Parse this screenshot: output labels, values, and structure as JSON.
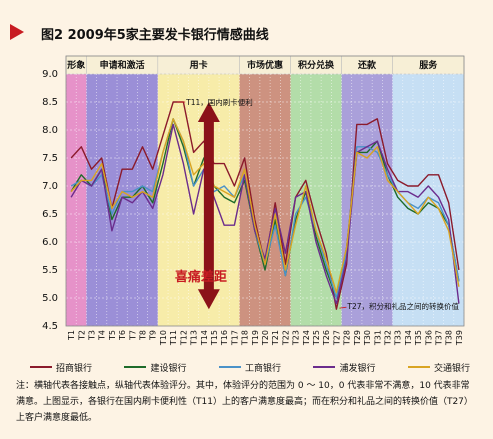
{
  "title": "图2  2009年5家主要发卡银行情感曲线",
  "note": "注：横轴代表各接触点，纵轴代表体验评分。其中，体验评分的范围为 0 ～ 10，0 代表非常不满意，10 代表非常满意。上图显示，各银行在国内刷卡便利性（T11）上的客户满意度最高；而在积分和礼品之间的转换价值（T27）上客户满意度最低。",
  "colors": {
    "accent": "#c81c22",
    "bands": [
      "#e27fc0",
      "#8a7bd0",
      "#f6e99a",
      "#c47f6a",
      "#a6d79a",
      "#9b8fd3",
      "#bcd9f2"
    ]
  },
  "chart_data": {
    "type": "line",
    "ylim": [
      4.5,
      9.0
    ],
    "yticks": [
      4.5,
      5.0,
      5.5,
      6.0,
      6.5,
      7.0,
      7.5,
      8.0,
      8.5,
      9.0
    ],
    "ytick_labels": [
      "4.5",
      "5.0",
      "5.5",
      "6.0",
      "6.5",
      "7.0",
      "7.5",
      "8.0",
      "8.5",
      "9.0"
    ],
    "x": [
      "T1",
      "T2",
      "T3",
      "T4",
      "T5",
      "T6",
      "T7",
      "T8",
      "T9",
      "T10",
      "T11",
      "T12",
      "T13",
      "T14",
      "T15",
      "T16",
      "T17",
      "T18",
      "T19",
      "T20",
      "T21",
      "T22",
      "T23",
      "T24",
      "T25",
      "T26",
      "T27",
      "T28",
      "T29",
      "T30",
      "T31",
      "T32",
      "T33",
      "T34",
      "T35",
      "T36",
      "T37",
      "T38",
      "T39"
    ],
    "categories": [
      {
        "label": "形象",
        "start": 0,
        "end": 2
      },
      {
        "label": "申请和激活",
        "start": 2,
        "end": 9
      },
      {
        "label": "用卡",
        "start": 9,
        "end": 17
      },
      {
        "label": "市场优惠",
        "start": 17,
        "end": 22
      },
      {
        "label": "积分兑换",
        "start": 22,
        "end": 27
      },
      {
        "label": "还款",
        "start": 27,
        "end": 32
      },
      {
        "label": "服务",
        "start": 32,
        "end": 39
      }
    ],
    "series": [
      {
        "name": "招商银行",
        "color": "#8b1a2b",
        "values": [
          7.5,
          7.7,
          7.3,
          7.5,
          6.6,
          7.3,
          7.3,
          7.7,
          7.3,
          7.9,
          8.5,
          8.5,
          7.6,
          7.8,
          7.4,
          7.4,
          7.0,
          7.5,
          6.4,
          5.6,
          6.7,
          5.6,
          6.8,
          7.1,
          6.4,
          5.8,
          4.8,
          5.6,
          8.1,
          8.1,
          8.2,
          7.4,
          7.1,
          7.0,
          7.0,
          7.2,
          7.2,
          6.7,
          5.5
        ]
      },
      {
        "name": "建设银行",
        "color": "#1e6b2a",
        "values": [
          6.9,
          7.2,
          7.0,
          7.3,
          6.4,
          6.8,
          6.8,
          7.0,
          6.7,
          7.4,
          8.2,
          7.7,
          7.0,
          7.5,
          7.0,
          6.8,
          6.7,
          7.1,
          6.2,
          5.5,
          6.4,
          5.4,
          6.4,
          6.9,
          6.1,
          5.5,
          5.0,
          5.9,
          7.6,
          7.6,
          7.8,
          7.2,
          6.8,
          6.6,
          6.5,
          6.7,
          6.6,
          6.3,
          5.3
        ]
      },
      {
        "name": "工商银行",
        "color": "#4a92c8",
        "values": [
          7.0,
          7.1,
          7.0,
          7.2,
          6.5,
          6.9,
          6.9,
          7.0,
          6.9,
          7.6,
          8.2,
          7.8,
          7.0,
          7.3,
          6.9,
          7.0,
          6.8,
          7.2,
          6.2,
          5.6,
          6.3,
          5.4,
          6.5,
          6.8,
          6.2,
          5.6,
          5.0,
          5.8,
          7.7,
          7.7,
          7.6,
          7.2,
          6.9,
          6.7,
          6.6,
          6.8,
          6.7,
          6.3,
          5.3
        ]
      },
      {
        "name": "浦发银行",
        "color": "#6b2c8c",
        "values": [
          6.8,
          7.1,
          7.0,
          7.3,
          6.2,
          6.8,
          6.7,
          6.9,
          6.6,
          7.2,
          8.1,
          7.4,
          6.5,
          7.3,
          6.8,
          6.3,
          6.3,
          7.2,
          6.2,
          5.7,
          6.6,
          5.8,
          6.8,
          6.9,
          6.0,
          5.4,
          4.9,
          5.7,
          7.6,
          7.7,
          7.8,
          7.3,
          6.9,
          6.9,
          6.8,
          7.0,
          6.8,
          6.4,
          4.9
        ]
      },
      {
        "name": "交通银行",
        "color": "#d9a422",
        "values": [
          6.9,
          7.1,
          7.1,
          7.4,
          6.6,
          6.9,
          6.8,
          6.9,
          6.8,
          7.6,
          8.2,
          7.8,
          7.2,
          7.4,
          7.0,
          6.9,
          6.8,
          7.3,
          6.3,
          5.6,
          6.5,
          5.5,
          6.3,
          7.0,
          6.2,
          5.7,
          5.1,
          5.9,
          7.6,
          7.5,
          7.7,
          7.1,
          6.9,
          6.7,
          6.5,
          6.8,
          6.6,
          6.2,
          5.2
        ]
      }
    ],
    "annotations": {
      "high_label": "T11，国内刷卡便利",
      "low_label": "T27，积分和礼品之间的转换价值",
      "gap_label": "喜痛差距"
    },
    "legend_position": "bottom"
  }
}
